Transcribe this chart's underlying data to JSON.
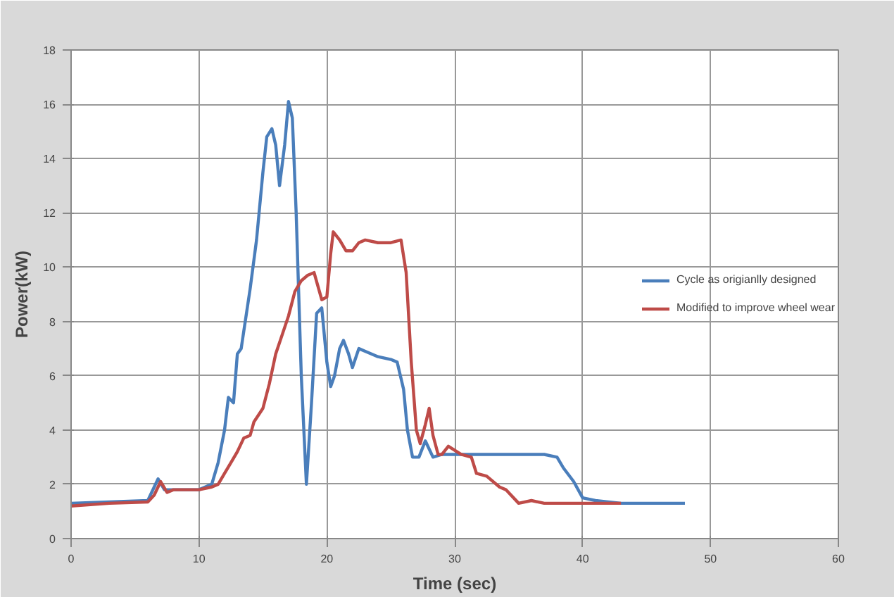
{
  "chart_data": {
    "type": "line",
    "xlabel": "Time (sec)",
    "ylabel": "Power(kW)",
    "xlim": [
      0,
      60
    ],
    "xticks": [
      0,
      10,
      20,
      30,
      40,
      50,
      60
    ],
    "ylim": [
      0,
      18
    ],
    "yticks": [
      0,
      2,
      4,
      6,
      8,
      10,
      12,
      14,
      16,
      18
    ],
    "grid": true,
    "legend": "right",
    "marker": "none",
    "line_style": "solid",
    "series": [
      {
        "name": "Cycle as origianlly designed",
        "color": "#4a7ebb",
        "x": [
          0,
          3,
          6,
          6.5,
          6.8,
          7.3,
          8,
          10,
          11,
          11.5,
          12,
          12.3,
          12.7,
          13,
          13.3,
          14,
          14.5,
          15,
          15.3,
          15.7,
          16,
          16.3,
          16.7,
          17,
          17.3,
          17.6,
          18,
          18.4,
          18.8,
          19.2,
          19.6,
          20,
          20.3,
          20.6,
          21,
          21.3,
          21.7,
          22,
          22.5,
          23,
          24,
          25,
          25.5,
          26,
          26.3,
          26.7,
          27.2,
          27.7,
          28.3,
          29,
          30,
          32,
          35,
          37,
          38,
          38.5,
          39.3,
          40,
          41,
          43,
          44,
          48
        ],
        "values": [
          1.3,
          1.35,
          1.4,
          1.9,
          2.2,
          1.8,
          1.8,
          1.8,
          2.0,
          2.8,
          4.0,
          5.2,
          5.0,
          6.8,
          7.0,
          9.2,
          11,
          13.5,
          14.8,
          15.1,
          14.5,
          13.0,
          14.5,
          16.1,
          15.5,
          12,
          6,
          2.0,
          5,
          8.3,
          8.5,
          6.5,
          5.6,
          6.0,
          7.0,
          7.3,
          6.8,
          6.3,
          7.0,
          6.9,
          6.7,
          6.6,
          6.5,
          5.5,
          4.0,
          3.0,
          3.0,
          3.6,
          3.0,
          3.1,
          3.1,
          3.1,
          3.1,
          3.1,
          3.0,
          2.6,
          2.1,
          1.5,
          1.4,
          1.3,
          1.3,
          1.3
        ]
      },
      {
        "name": "Modified to improve wheel wear",
        "color": "#be4b48",
        "x": [
          0,
          3,
          6,
          6.5,
          7,
          7.5,
          8,
          10,
          11,
          11.5,
          12,
          12.5,
          13,
          13.5,
          14,
          14.3,
          15,
          15.5,
          16,
          16.5,
          17,
          17.5,
          18,
          18.5,
          19,
          19.3,
          19.6,
          20,
          20.3,
          20.5,
          21,
          21.5,
          22,
          22.5,
          23,
          24,
          25,
          25.8,
          26.2,
          26.6,
          27,
          27.3,
          27.7,
          28,
          28.3,
          28.7,
          29,
          29.5,
          30.5,
          31.3,
          31.7,
          32.5,
          33.5,
          34,
          35,
          36,
          37,
          38,
          40,
          42,
          43
        ],
        "values": [
          1.2,
          1.3,
          1.35,
          1.6,
          2.1,
          1.7,
          1.8,
          1.8,
          1.9,
          2.0,
          2.4,
          2.8,
          3.2,
          3.7,
          3.8,
          4.3,
          4.8,
          5.7,
          6.8,
          7.5,
          8.2,
          9.1,
          9.5,
          9.7,
          9.8,
          9.3,
          8.8,
          8.9,
          10.5,
          11.3,
          11.0,
          10.6,
          10.6,
          10.9,
          11.0,
          10.9,
          10.9,
          11.0,
          9.8,
          6.5,
          4.0,
          3.5,
          4.2,
          4.8,
          3.8,
          3.1,
          3.1,
          3.4,
          3.1,
          3.0,
          2.4,
          2.3,
          1.9,
          1.8,
          1.3,
          1.4,
          1.3,
          1.3,
          1.3,
          1.3,
          1.3
        ]
      }
    ]
  }
}
